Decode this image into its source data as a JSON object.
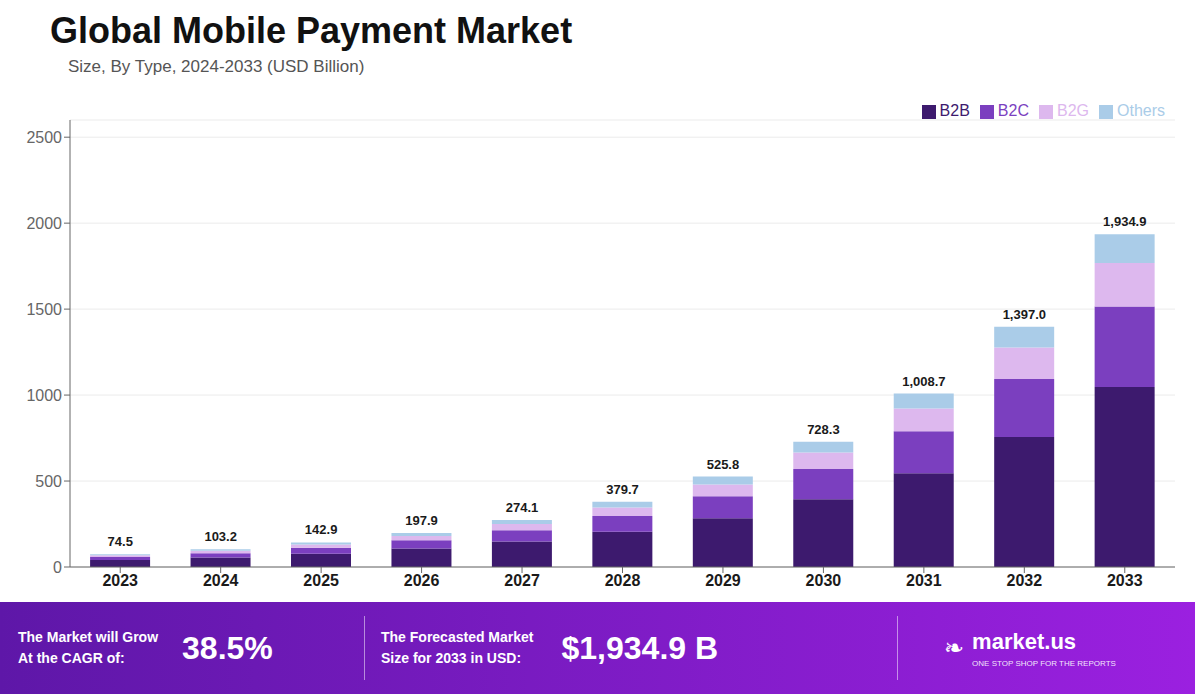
{
  "chart_data": {
    "type": "bar",
    "title": "Global Mobile Payment Market",
    "subtitle": "Size, By Type, 2024-2033 (USD Billion)",
    "categories": [
      "2023",
      "2024",
      "2025",
      "2026",
      "2027",
      "2028",
      "2029",
      "2030",
      "2031",
      "2032",
      "2033"
    ],
    "series": [
      {
        "name": "B2B",
        "color": "#3d1a6e",
        "values": [
          40.0,
          55.5,
          77.0,
          107.0,
          148.0,
          205.0,
          284.0,
          394.0,
          546.0,
          756.0,
          1047.0
        ]
      },
      {
        "name": "B2C",
        "color": "#7b3fbf",
        "values": [
          18.0,
          25.0,
          34.5,
          48.0,
          66.0,
          91.5,
          127.0,
          176.0,
          244.0,
          338.0,
          468.0
        ]
      },
      {
        "name": "B2G",
        "color": "#ddb8ee",
        "values": [
          10.0,
          13.5,
          18.7,
          26.0,
          36.0,
          49.9,
          69.0,
          95.6,
          132.0,
          183.0,
          253.0
        ]
      },
      {
        "name": "Others",
        "color": "#aacce8",
        "values": [
          6.5,
          9.2,
          12.7,
          16.9,
          24.1,
          33.3,
          45.8,
          62.7,
          86.7,
          120.0,
          166.9
        ]
      }
    ],
    "totals": [
      74.5,
      103.2,
      142.9,
      197.9,
      274.1,
      379.7,
      525.8,
      728.3,
      1008.7,
      1397.0,
      1934.9
    ],
    "total_labels": [
      "74.5",
      "103.2",
      "142.9",
      "197.9",
      "274.1",
      "379.7",
      "525.8",
      "728.3",
      "1,008.7",
      "1,397.0",
      "1,934.9"
    ],
    "stacked": true,
    "ylim": [
      0,
      2600
    ],
    "yticks": [
      0,
      500,
      1000,
      1500,
      2000,
      2500
    ],
    "grid": true,
    "legend": "top-right",
    "annotations": [
      "The Market will Grow\nAt the CAGR of:",
      "38.5%",
      "The Forecasted Market\nSize for 2033 in USD:",
      "$1,934.9 B",
      "❧",
      "market.us",
      "ONE STOP SHOP FOR THE REPORTS"
    ]
  }
}
